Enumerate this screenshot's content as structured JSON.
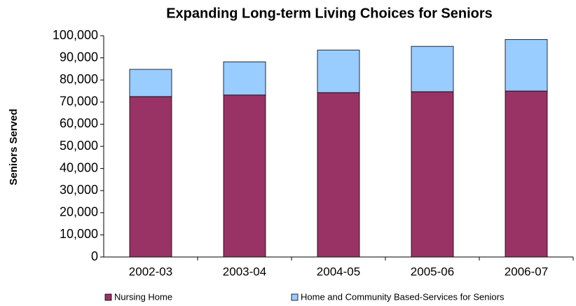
{
  "chart_data": {
    "type": "stacked_bar",
    "title": "Expanding Long-term Living Choices for Seniors",
    "y_label": "Seniors Served",
    "categories": [
      "2002-03",
      "2003-04",
      "2004-05",
      "2005-06",
      "2006-07"
    ],
    "series": [
      {
        "name": "Nursing Home",
        "color": "#993366",
        "values": [
          72500,
          73200,
          74300,
          74700,
          75000
        ]
      },
      {
        "name": "Home and Community Based-Services for Seniors",
        "color": "#99ccff",
        "values": [
          12300,
          15000,
          19200,
          20500,
          23300
        ]
      }
    ],
    "ylim": [
      0,
      100000
    ],
    "yticks": [
      0,
      {
        "value": 10000,
        "label": "10,000"
      },
      {
        "value": 20000,
        "label": "20,000"
      },
      {
        "value": 30000,
        "label": "30,000"
      },
      {
        "value": 40000,
        "label": "40,000"
      },
      {
        "value": 50000,
        "label": "50,000"
      },
      {
        "value": 60000,
        "label": "60,000"
      },
      {
        "value": 70000,
        "label": "70,000"
      },
      {
        "value": 80000,
        "label": "80,000"
      },
      {
        "value": 90000,
        "label": "90,000"
      },
      {
        "value": 100000,
        "label": "100,000"
      }
    ],
    "legend": "bottom"
  }
}
